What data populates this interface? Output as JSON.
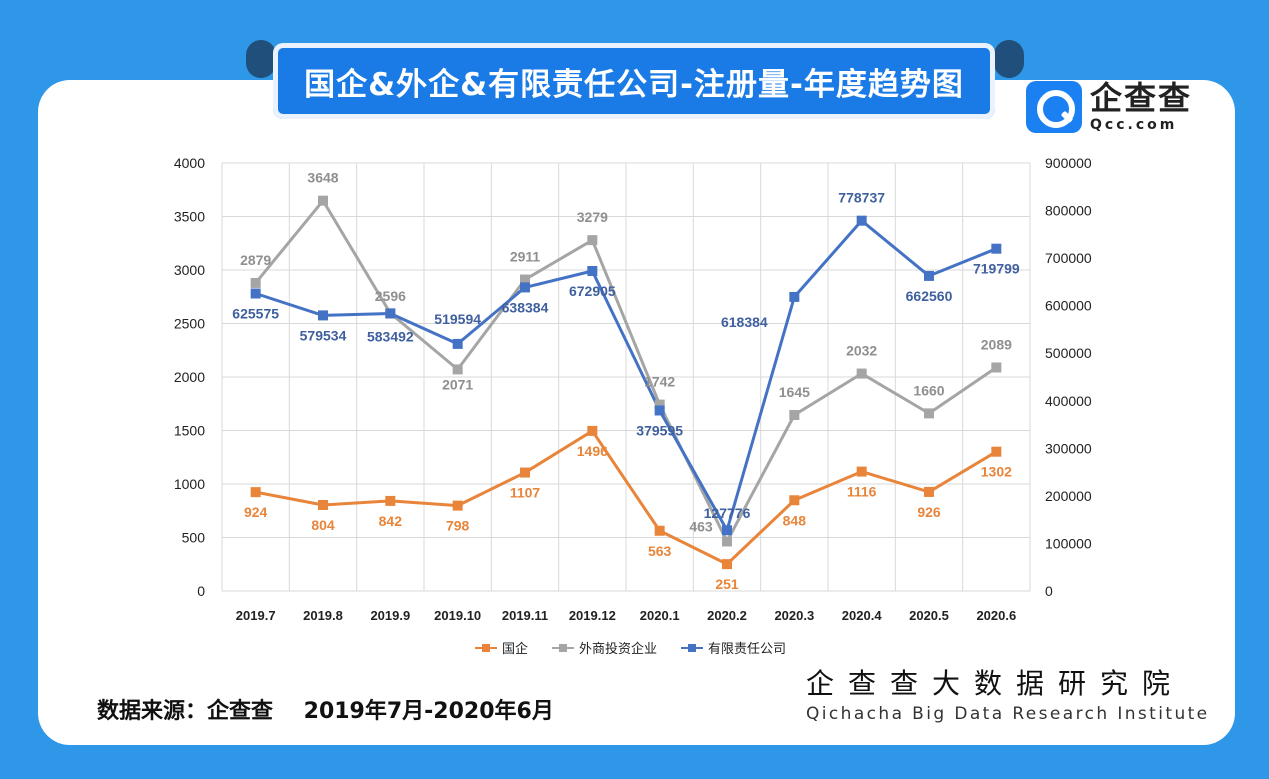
{
  "title": "国企&外企&有限责任公司-注册量-年度趋势图",
  "logo": {
    "cn": "企查查",
    "en": "Qcc.com"
  },
  "source_text": "数据来源：企查查    2019年7月-2020年6月",
  "institute": {
    "cn": "企查查大数据研究院",
    "en": "Qichacha Big Data Research Institute"
  },
  "colors": {
    "guoqi": "#e8853a",
    "waishang": "#a5a5a5",
    "youxian": "#4472c4",
    "banner": "#1b7be6",
    "background": "#2f97e8"
  },
  "chart_data": {
    "type": "line",
    "categories": [
      "2019.7",
      "2019.8",
      "2019.9",
      "2019.10",
      "2019.11",
      "2019.12",
      "2020.1",
      "2020.2",
      "2020.3",
      "2020.4",
      "2020.5",
      "2020.6"
    ],
    "left_axis": {
      "min": 0,
      "max": 4000,
      "ticks": [
        0,
        500,
        1000,
        1500,
        2000,
        2500,
        3000,
        3500,
        4000
      ]
    },
    "right_axis": {
      "min": 0,
      "max": 900000,
      "ticks": [
        0,
        100000,
        200000,
        300000,
        400000,
        500000,
        600000,
        700000,
        800000,
        900000
      ]
    },
    "series": [
      {
        "name": "国企",
        "axis": "left",
        "color": "#e8853a",
        "values": [
          924,
          804,
          842,
          798,
          1107,
          1496,
          563,
          251,
          848,
          1116,
          926,
          1302
        ]
      },
      {
        "name": "外商投资企业",
        "axis": "left",
        "color": "#a5a5a5",
        "values": [
          2879,
          3648,
          2596,
          2071,
          2911,
          3279,
          1742,
          463,
          1645,
          2032,
          1660,
          2089
        ]
      },
      {
        "name": "有限责任公司",
        "axis": "right",
        "color": "#4472c4",
        "values": [
          625575,
          579534,
          583492,
          519594,
          638384,
          672905,
          379595,
          127776,
          618384,
          778737,
          662560,
          719799
        ]
      }
    ],
    "legend": [
      "国企",
      "外商投资企业",
      "有限责任公司"
    ],
    "legend_position": "bottom",
    "grid": true
  }
}
